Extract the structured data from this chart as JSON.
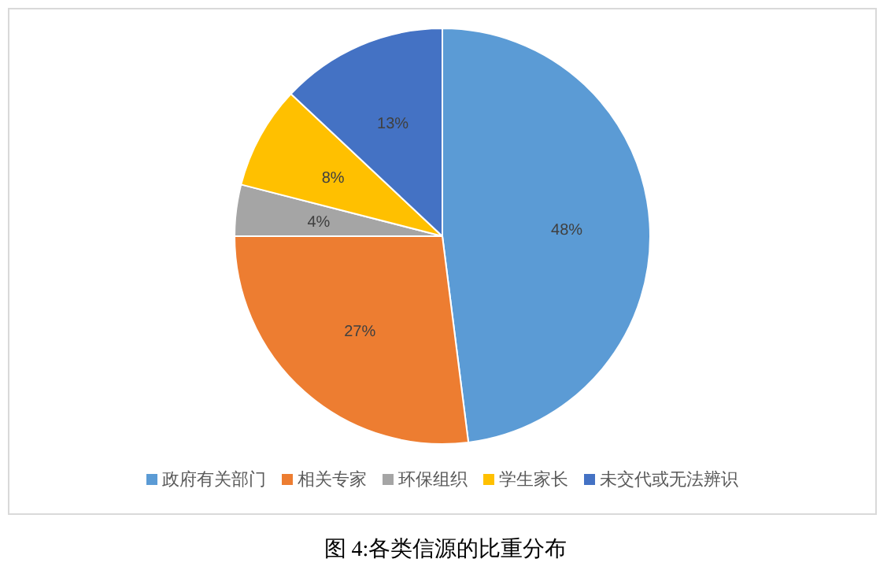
{
  "chart_data": {
    "type": "pie",
    "categories": [
      "政府有关部门",
      "相关专家",
      "环保组织",
      "学生家长",
      "未交代或无法辨识"
    ],
    "values": [
      48,
      27,
      4,
      8,
      13
    ],
    "colors": [
      "#5b9bd5",
      "#ed7d31",
      "#a5a5a5",
      "#ffc000",
      "#4472c4"
    ],
    "value_labels": [
      "48%",
      "27%",
      "4%",
      "8%",
      "13%"
    ],
    "legend": "bottom",
    "annotations": [
      "图 4:各类信源的比重分布"
    ]
  }
}
